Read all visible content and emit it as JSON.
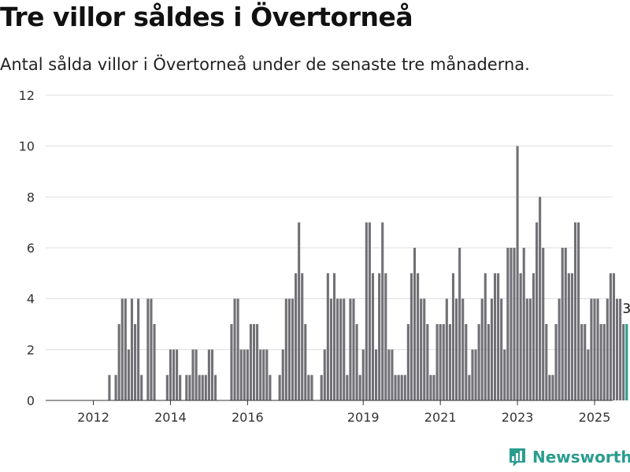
{
  "title": "Tre villor såldes i Övertorneå",
  "subtitle": "Antal sålda villor i Övertorneå under de senaste tre månaderna.",
  "brand": "Newsworthy",
  "colors": {
    "bar": "#707076",
    "highlight": "#2a9d8f",
    "grid": "#dddddd",
    "brand": "#2a9d8f"
  },
  "chart_data": {
    "type": "bar",
    "x_start": "2011-07",
    "x_ticks": [
      "2012",
      "2014",
      "2016",
      "2019",
      "2021",
      "2023",
      "2025"
    ],
    "y_ticks": [
      "0",
      "2",
      "4",
      "6",
      "8",
      "10",
      "12"
    ],
    "ylim": [
      0,
      12
    ],
    "grid": true,
    "highlight_label": "3",
    "values": [
      0,
      0,
      0,
      0,
      0,
      0,
      0,
      0,
      0,
      0,
      0,
      1,
      0,
      1,
      3,
      4,
      4,
      2,
      4,
      3,
      4,
      1,
      0,
      4,
      4,
      3,
      0,
      0,
      0,
      1,
      2,
      2,
      2,
      1,
      0,
      1,
      1,
      2,
      2,
      1,
      1,
      1,
      2,
      2,
      1,
      0,
      0,
      0,
      0,
      3,
      4,
      4,
      2,
      2,
      2,
      3,
      3,
      3,
      2,
      2,
      2,
      1,
      0,
      0,
      1,
      2,
      4,
      4,
      4,
      5,
      7,
      5,
      3,
      1,
      1,
      0,
      0,
      1,
      2,
      5,
      4,
      5,
      4,
      4,
      4,
      1,
      4,
      4,
      3,
      1,
      2,
      7,
      7,
      5,
      2,
      5,
      7,
      5,
      2,
      2,
      1,
      1,
      1,
      1,
      3,
      5,
      6,
      5,
      4,
      4,
      3,
      1,
      1,
      3,
      3,
      3,
      4,
      3,
      5,
      4,
      6,
      4,
      3,
      1,
      2,
      2,
      3,
      4,
      5,
      3,
      4,
      5,
      5,
      4,
      2,
      6,
      6,
      6,
      10,
      5,
      6,
      4,
      4,
      5,
      7,
      8,
      6,
      3,
      1,
      1,
      3,
      4,
      6,
      6,
      5,
      5,
      7,
      7,
      3,
      3,
      2,
      4,
      4,
      4,
      3,
      3,
      4,
      5,
      5,
      4,
      4,
      3
    ],
    "highlight_values": [
      3
    ]
  }
}
